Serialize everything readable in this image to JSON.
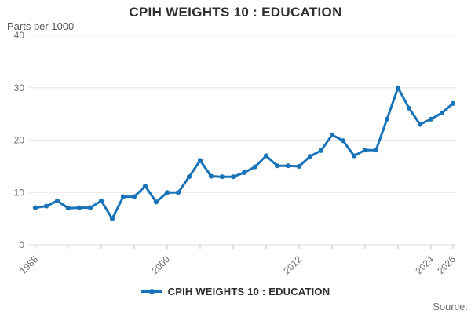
{
  "page": {
    "title": "CPIH WEIGHTS 10 : EDUCATION",
    "units_label": "Parts per 1000",
    "source_label": "Source:",
    "legend_label": "CPIH WEIGHTS 10 : EDUCATION"
  },
  "colors": {
    "line": "#1873b8",
    "grid": "#e6e6e6",
    "axis_tick": "#c7d2e4",
    "baseline": "#dcdfe4",
    "tick_label": "#6e6e6e",
    "title_text": "#2e2e2e",
    "source_text": "#6e6e6e"
  },
  "chart_data": {
    "type": "line",
    "title": "CPIH WEIGHTS 10 : EDUCATION",
    "xlabel": "",
    "ylabel": "Parts per 1000",
    "ylim": [
      0,
      40
    ],
    "y_ticks": [
      0,
      10,
      20,
      30,
      40
    ],
    "x_labeled_ticks": [
      1988,
      2000,
      2012,
      2024,
      2026
    ],
    "x_minor_tick_step_years": 3,
    "grid": true,
    "legend_position": "bottom-center",
    "marker": "circle",
    "x": [
      1988,
      1989,
      1990,
      1991,
      1992,
      1993,
      1994,
      1995,
      1996,
      1997,
      1998,
      1999,
      2000,
      2001,
      2002,
      2003,
      2004,
      2005,
      2006,
      2007,
      2008,
      2009,
      2010,
      2011,
      2012,
      2013,
      2014,
      2015,
      2016,
      2017,
      2018,
      2019,
      2020,
      2021,
      2022,
      2023,
      2024,
      2025,
      2026
    ],
    "series": [
      {
        "name": "CPIH WEIGHTS 10 : EDUCATION",
        "values": [
          7.1,
          7.4,
          8.4,
          7.0,
          7.1,
          7.1,
          8.4,
          5.0,
          9.2,
          9.2,
          11.2,
          8.2,
          10.0,
          10.0,
          13.0,
          16.1,
          13.1,
          13.0,
          13.0,
          13.8,
          14.9,
          17.0,
          15.1,
          15.1,
          15.0,
          16.9,
          18.0,
          21.0,
          19.9,
          17.0,
          18.1,
          18.1,
          24.0,
          30.0,
          26.1,
          23.0,
          24.0,
          25.2,
          27.0
        ]
      }
    ]
  }
}
